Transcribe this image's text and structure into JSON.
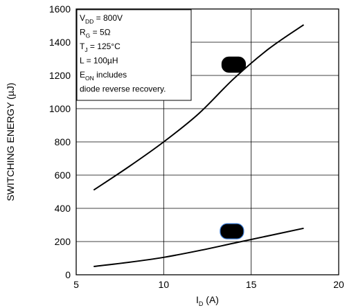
{
  "chart_data": {
    "type": "line",
    "title": "",
    "xlabel": {
      "main": "I",
      "sub": "D",
      "rest": " (A)"
    },
    "ylabel": "SWITCHING ENERGY (µJ)",
    "xlim": [
      5,
      20
    ],
    "ylim": [
      0,
      1600
    ],
    "x_ticks": [
      "5",
      "10",
      "15",
      "20"
    ],
    "y_ticks": [
      "0",
      "200",
      "400",
      "600",
      "800",
      "1000",
      "1200",
      "1400",
      "1600"
    ],
    "grid": true,
    "series": [
      {
        "name": "",
        "color": "#000000",
        "x": [
          6,
          8,
          10,
          12,
          14,
          16,
          18
        ],
        "y": [
          510,
          650,
          800,
          970,
          1180,
          1360,
          1505
        ]
      },
      {
        "name": "",
        "color": "#000000",
        "x": [
          6,
          8,
          10,
          12,
          14,
          16,
          18
        ],
        "y": [
          50,
          75,
          105,
          145,
          190,
          235,
          280
        ]
      }
    ],
    "annotation_lines": [
      {
        "main": "V",
        "sub": "DD",
        "rest": " = 800V"
      },
      {
        "main": "R",
        "sub": "G",
        "rest": " = 5Ω"
      },
      {
        "main": "T",
        "sub": "J",
        "rest": " = 125°C"
      },
      {
        "main": "L",
        "sub": "",
        "rest": " = 100µH"
      },
      {
        "main": "E",
        "sub": "ON",
        "rest": "  includes"
      },
      {
        "main": "diode  reverse  recovery.",
        "sub": "",
        "rest": ""
      }
    ],
    "legend_markers": [
      {
        "x": 14.0,
        "y": 1265,
        "fill": "#000000",
        "stroke": "#000000"
      },
      {
        "x": 13.9,
        "y": 262,
        "fill": "#000000",
        "stroke": "#3a7bd5"
      }
    ]
  }
}
